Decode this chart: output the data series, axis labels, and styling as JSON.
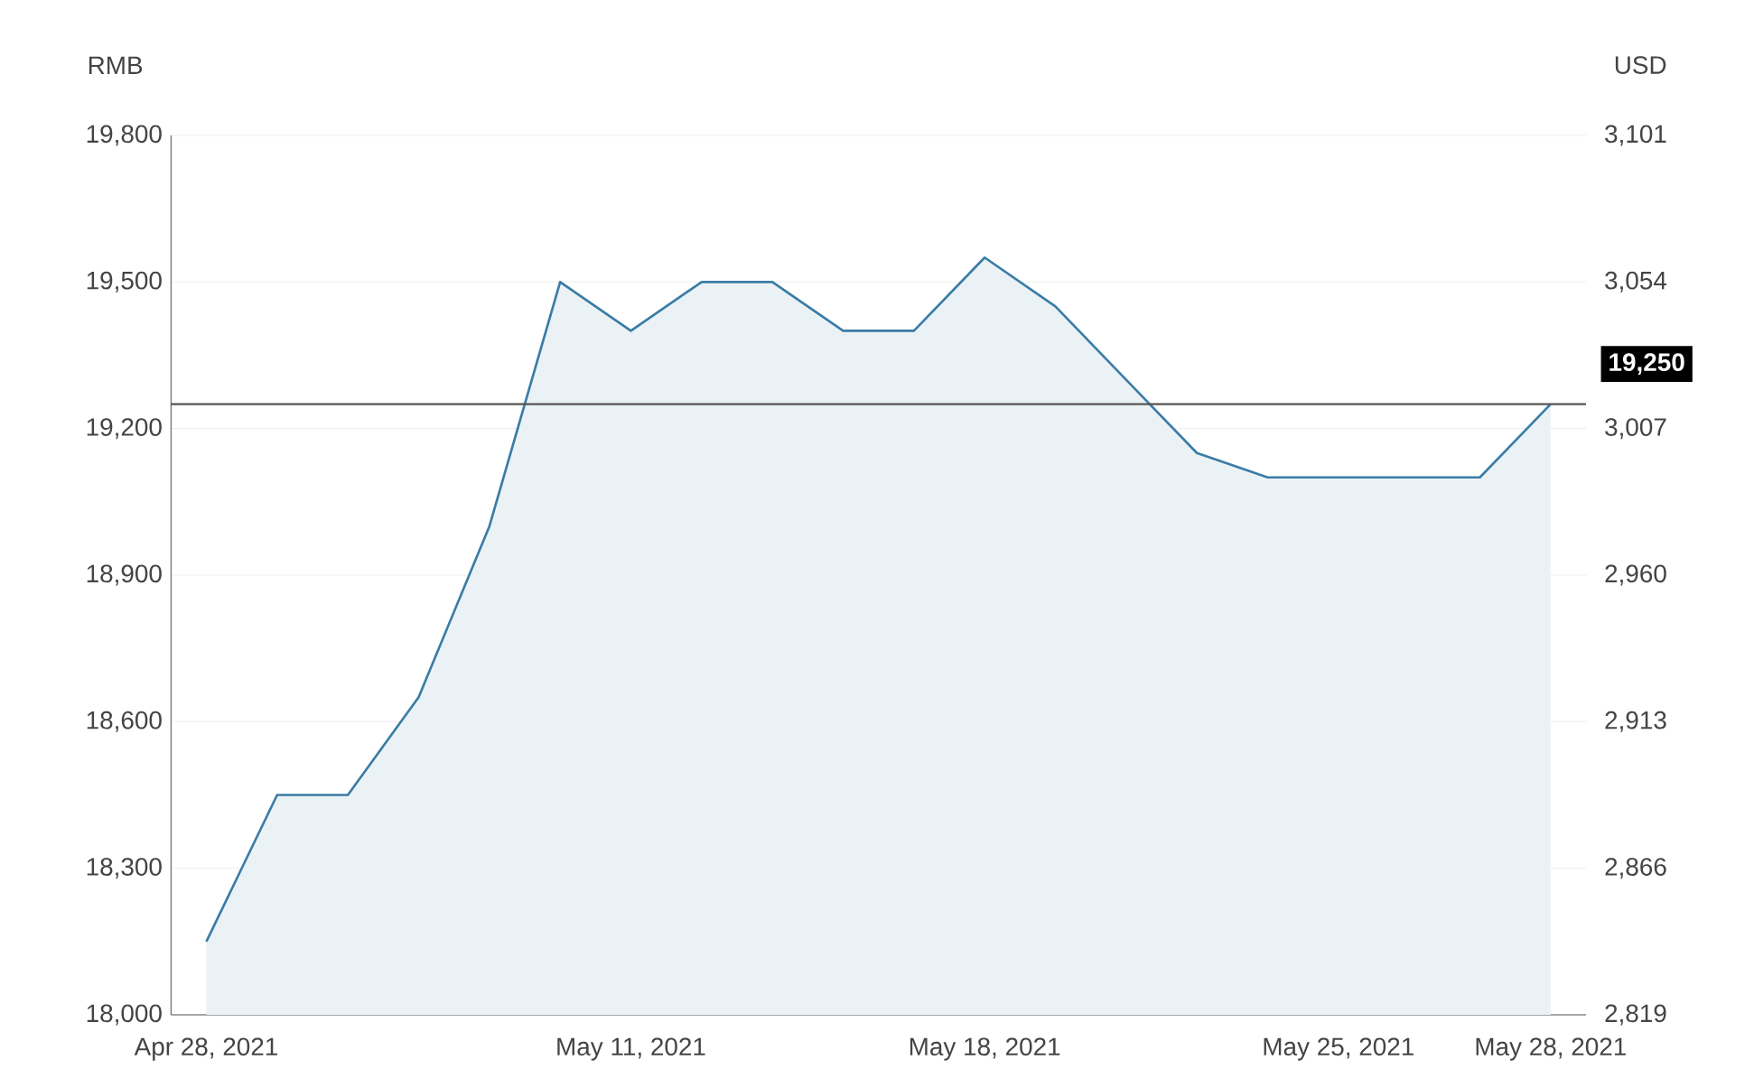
{
  "chart_data": {
    "type": "area",
    "ylabel": "RMB",
    "y2label": "USD",
    "categories": [
      "Apr 28, 2021",
      null,
      null,
      null,
      null,
      null,
      "May 11, 2021",
      null,
      null,
      null,
      null,
      "May 18, 2021",
      null,
      null,
      null,
      null,
      "May 25, 2021",
      null,
      null,
      "May 28, 2021"
    ],
    "series": [
      {
        "color": "#3a7ca5",
        "values": [
          18150,
          18450,
          18450,
          18650,
          19000,
          19500,
          19400,
          19500,
          19500,
          19400,
          19400,
          19550,
          19450,
          19300,
          19150,
          19100,
          19100,
          19100,
          19100,
          19250
        ]
      }
    ],
    "ylim": [
      18000,
      19800
    ],
    "yticks": [
      {
        "value": 18000,
        "label": "18,000"
      },
      {
        "value": 18300,
        "label": "18,300"
      },
      {
        "value": 18600,
        "label": "18,600"
      },
      {
        "value": 18900,
        "label": "18,900"
      },
      {
        "value": 19200,
        "label": "19,200"
      },
      {
        "value": 19500,
        "label": "19,500"
      },
      {
        "value": 19800,
        "label": "19,800"
      }
    ],
    "y2lim": [
      2819,
      3101
    ],
    "y2ticks": [
      {
        "value": 2819,
        "label": "2,819"
      },
      {
        "value": 2866,
        "label": "2,866"
      },
      {
        "value": 2913,
        "label": "2,913"
      },
      {
        "value": 2960,
        "label": "2,960"
      },
      {
        "value": 3007,
        "label": "3,007"
      },
      {
        "value": 3054,
        "label": "3,054"
      },
      {
        "value": 3101,
        "label": "3,101"
      }
    ],
    "ref_lines": [
      {
        "axis": "y",
        "value": 19250,
        "label": "19,250",
        "color": "#555555"
      }
    ],
    "grid": "y"
  }
}
